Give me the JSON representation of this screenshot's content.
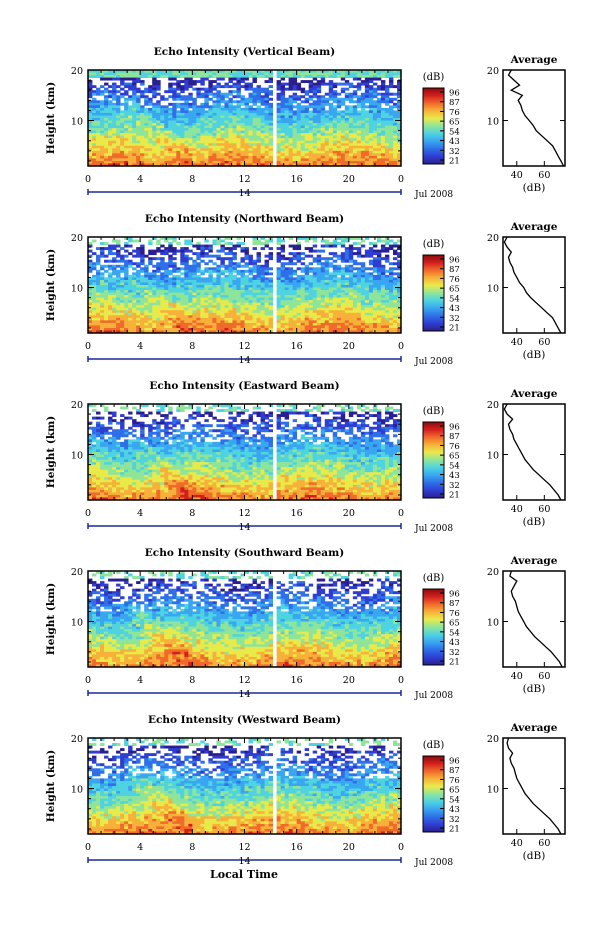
{
  "figure": {
    "x_axis_title": "Local Time",
    "date_label": "Jul 2008",
    "day_marker": "14",
    "left_y_label": "Height (km)",
    "colorbar_unit": "(dB)",
    "colorbar_ticks": [
      "96",
      "87",
      "76",
      "65",
      "54",
      "43",
      "32",
      "21"
    ],
    "colors": {
      "cmap": [
        "#2a1f8f",
        "#2f3dd1",
        "#2f6fe8",
        "#38a6f0",
        "#4fd3e0",
        "#8ee59a",
        "#e8ea4a",
        "#f7b13a",
        "#f06a2a",
        "#d41f1f",
        "#8b0a0a"
      ],
      "gap": "#ffffff"
    }
  },
  "chart_data": [
    {
      "type": "heatmap",
      "title": "Echo Intensity (Vertical Beam)",
      "xlabel": "",
      "ylabel": "Height (km)",
      "x_ticks": [
        "0",
        "4",
        "8",
        "12",
        "16",
        "20",
        "0"
      ],
      "y_ticks": [
        "20",
        "10"
      ],
      "xlim": [
        0,
        24
      ],
      "ylim": [
        1,
        20
      ],
      "data_gap_hours": [
        14.2,
        14.5
      ],
      "colorbar": {
        "label": "(dB)",
        "min": 21,
        "max": 96
      },
      "profile": {
        "title": "Average",
        "xlabel": "(dB)",
        "x_ticks": [
          "40",
          "60"
        ],
        "y_ticks": [
          "20",
          "10"
        ],
        "xlim": [
          30,
          75
        ],
        "height_km": [
          1,
          2,
          3,
          4,
          5,
          6,
          7,
          8,
          9,
          10,
          11,
          12,
          13,
          14,
          15,
          16,
          17,
          18,
          19,
          20
        ],
        "db": [
          74,
          72,
          70,
          68,
          66,
          62,
          58,
          54,
          52,
          49,
          46,
          44,
          43,
          41,
          44,
          36,
          42,
          38,
          34,
          36
        ]
      }
    },
    {
      "type": "heatmap",
      "title": "Echo Intensity (Northward Beam)",
      "xlabel": "",
      "ylabel": "Height (km)",
      "x_ticks": [
        "0",
        "4",
        "8",
        "12",
        "16",
        "20",
        "0"
      ],
      "y_ticks": [
        "20",
        "10"
      ],
      "xlim": [
        0,
        24
      ],
      "ylim": [
        1,
        20
      ],
      "data_gap_hours": [
        14.2,
        14.5
      ],
      "colorbar": {
        "label": "(dB)",
        "min": 21,
        "max": 96
      },
      "profile": {
        "title": "Average",
        "xlabel": "(dB)",
        "x_ticks": [
          "40",
          "60"
        ],
        "y_ticks": [
          "20",
          "10"
        ],
        "xlim": [
          30,
          75
        ],
        "height_km": [
          1,
          2,
          3,
          4,
          5,
          6,
          7,
          8,
          9,
          10,
          11,
          12,
          13,
          14,
          15,
          16,
          17,
          18,
          19,
          20
        ],
        "db": [
          72,
          70,
          68,
          66,
          62,
          58,
          54,
          50,
          47,
          45,
          42,
          40,
          38,
          37,
          35,
          34,
          36,
          33,
          31,
          33
        ]
      }
    },
    {
      "type": "heatmap",
      "title": "Echo Intensity (Eastward Beam)",
      "xlabel": "",
      "ylabel": "Height (km)",
      "x_ticks": [
        "0",
        "4",
        "8",
        "12",
        "16",
        "20",
        "0"
      ],
      "y_ticks": [
        "20",
        "10"
      ],
      "xlim": [
        0,
        24
      ],
      "ylim": [
        1,
        20
      ],
      "data_gap_hours": [
        14.2,
        14.5
      ],
      "colorbar": {
        "label": "(dB)",
        "min": 21,
        "max": 96
      },
      "profile": {
        "title": "Average",
        "xlabel": "(dB)",
        "x_ticks": [
          "40",
          "60"
        ],
        "y_ticks": [
          "20",
          "10"
        ],
        "xlim": [
          30,
          75
        ],
        "height_km": [
          1,
          2,
          3,
          4,
          5,
          6,
          7,
          8,
          9,
          10,
          11,
          12,
          13,
          14,
          15,
          16,
          17,
          18,
          19,
          20
        ],
        "db": [
          72,
          70,
          67,
          64,
          60,
          56,
          52,
          49,
          46,
          44,
          42,
          40,
          38,
          37,
          35,
          34,
          37,
          33,
          31,
          33
        ]
      }
    },
    {
      "type": "heatmap",
      "title": "Echo Intensity (Southward Beam)",
      "xlabel": "",
      "ylabel": "Height (km)",
      "x_ticks": [
        "0",
        "4",
        "8",
        "12",
        "16",
        "20",
        "0"
      ],
      "y_ticks": [
        "20",
        "10"
      ],
      "xlim": [
        0,
        24
      ],
      "ylim": [
        1,
        20
      ],
      "data_gap_hours": [
        14.2,
        14.5
      ],
      "colorbar": {
        "label": "(dB)",
        "min": 21,
        "max": 96
      },
      "profile": {
        "title": "Average",
        "xlabel": "(dB)",
        "x_ticks": [
          "40",
          "60"
        ],
        "y_ticks": [
          "20",
          "10"
        ],
        "xlim": [
          30,
          75
        ],
        "height_km": [
          1,
          2,
          3,
          4,
          5,
          6,
          7,
          8,
          9,
          10,
          11,
          12,
          13,
          14,
          15,
          16,
          17,
          18,
          19,
          20
        ],
        "db": [
          73,
          71,
          68,
          65,
          61,
          57,
          53,
          50,
          47,
          45,
          43,
          41,
          40,
          39,
          37,
          36,
          38,
          40,
          35,
          36
        ]
      }
    },
    {
      "type": "heatmap",
      "title": "Echo Intensity (Westward Beam)",
      "xlabel": "Local Time",
      "ylabel": "Height (km)",
      "x_ticks": [
        "0",
        "4",
        "8",
        "12",
        "16",
        "20",
        "0"
      ],
      "y_ticks": [
        "20",
        "10"
      ],
      "xlim": [
        0,
        24
      ],
      "ylim": [
        1,
        20
      ],
      "data_gap_hours": [
        14.2,
        14.5
      ],
      "colorbar": {
        "label": "(dB)",
        "min": 21,
        "max": 96
      },
      "profile": {
        "title": "Average",
        "xlabel": "(dB)",
        "x_ticks": [
          "40",
          "60"
        ],
        "y_ticks": [
          "20",
          "10"
        ],
        "xlim": [
          30,
          75
        ],
        "height_km": [
          1,
          2,
          3,
          4,
          5,
          6,
          7,
          8,
          9,
          10,
          11,
          12,
          13,
          14,
          15,
          16,
          17,
          18,
          19,
          20
        ],
        "db": [
          72,
          70,
          67,
          64,
          60,
          56,
          52,
          49,
          46,
          44,
          42,
          40,
          39,
          38,
          36,
          35,
          37,
          34,
          33,
          34
        ]
      }
    }
  ]
}
